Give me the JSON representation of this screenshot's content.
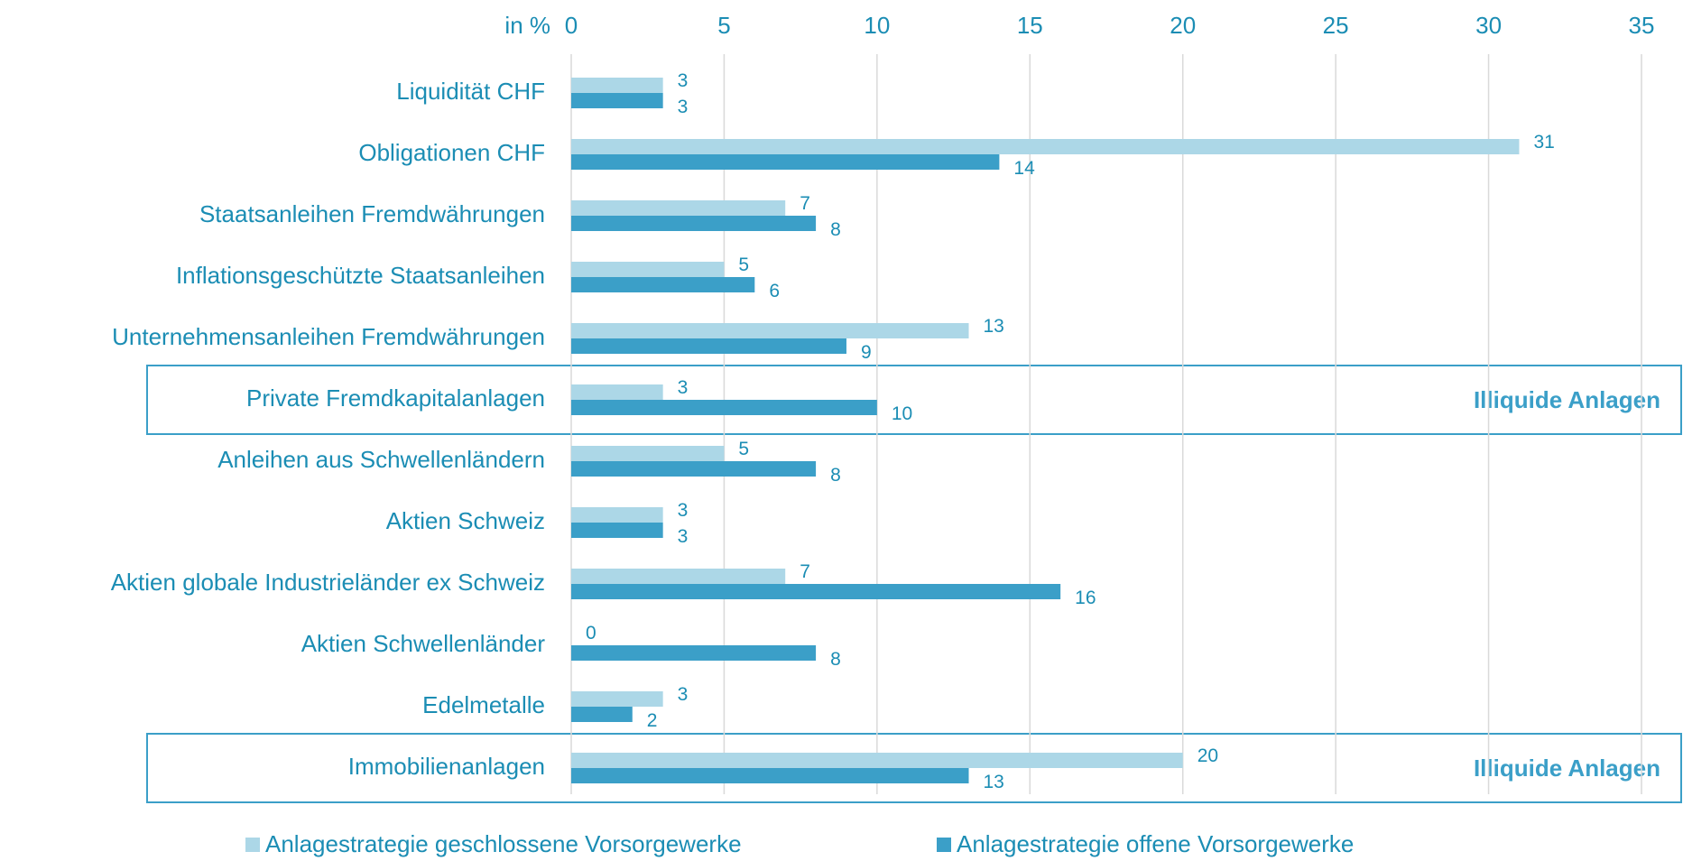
{
  "chart_data": {
    "type": "hbar",
    "axis_label": "in %",
    "categories": [
      "Liquidität CHF",
      "Obligationen CHF",
      "Staatsanleihen Fremdwährungen",
      "Inflationsgeschützte Staatsanleihen",
      "Unternehmensanleihen Fremdwährungen",
      "Private Fremdkapitalanlagen",
      "Anleihen aus Schwellenländern",
      "Aktien Schweiz",
      "Aktien globale Industrieländer ex Schweiz",
      "Aktien Schwellenländer",
      "Edelmetalle",
      "Immobilienanlagen"
    ],
    "series": [
      {
        "name": "Anlagestrategie geschlossene Vorsorgewerke",
        "color": "#acd7e7",
        "values": [
          3,
          31,
          7,
          5,
          13,
          3,
          5,
          3,
          7,
          0,
          3,
          20
        ]
      },
      {
        "name": "Anlagestrategie offene Vorsorgewerke",
        "color": "#3b9fc8",
        "values": [
          3,
          14,
          8,
          6,
          9,
          10,
          8,
          3,
          16,
          8,
          2,
          13
        ]
      }
    ],
    "xlim": [
      0,
      35
    ],
    "xticks": [
      0,
      5,
      10,
      15,
      20,
      25,
      30,
      35
    ],
    "grid": true,
    "legend": "bottom",
    "highlights": [
      {
        "category": "Private Fremdkapitalanlagen",
        "label": "Illiquide Anlagen"
      },
      {
        "category": "Immobilienanlagen",
        "label": "Illiquide Anlagen"
      }
    ]
  }
}
